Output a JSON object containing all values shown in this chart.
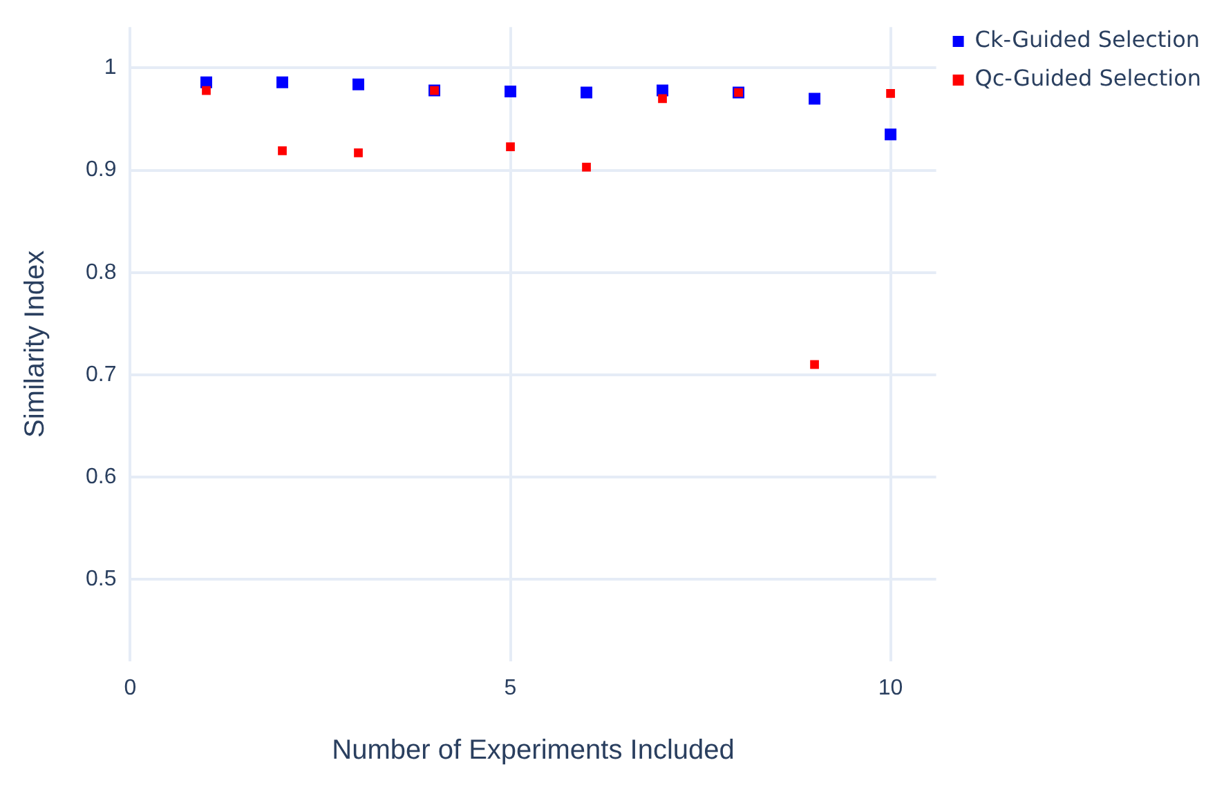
{
  "chart_data": {
    "type": "scatter",
    "xlabel": "Number of Experiments Included",
    "ylabel": "Similarity Index",
    "x": [
      1,
      2,
      3,
      4,
      5,
      6,
      7,
      8,
      9,
      10
    ],
    "xlim": [
      0,
      10.6
    ],
    "xticks": [
      0,
      5,
      10
    ],
    "ylim": [
      0.42,
      1.04
    ],
    "yticks": [
      0.5,
      0.6,
      0.7,
      0.8,
      0.9,
      1
    ],
    "grid": true,
    "legend": "top right",
    "marker": "square",
    "series": [
      {
        "name": "Ck-Guided Selection",
        "color": "#0000ff",
        "values": [
          0.986,
          0.986,
          0.984,
          0.978,
          0.977,
          0.976,
          0.978,
          0.976,
          0.97,
          0.935
        ]
      },
      {
        "name": "Qc-Guided Selection",
        "color": "#ff0000",
        "values": [
          0.978,
          0.919,
          0.917,
          0.978,
          0.923,
          0.903,
          0.97,
          0.976,
          0.71,
          0.975
        ]
      }
    ]
  }
}
